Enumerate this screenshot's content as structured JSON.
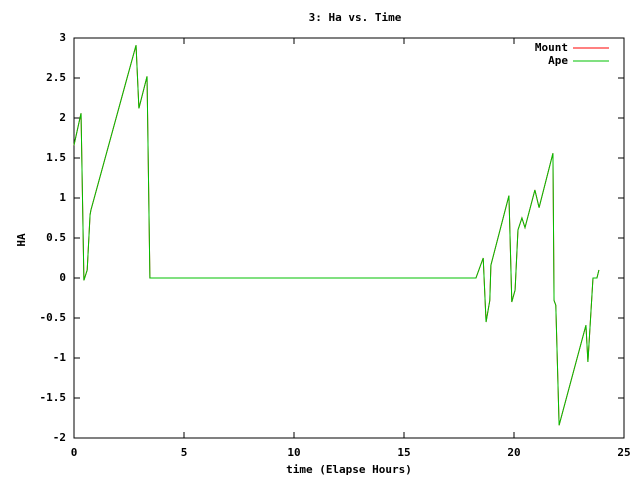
{
  "chart_data": {
    "type": "line",
    "title": "3: Ha vs. Time",
    "xlabel": "time (Elapse Hours)",
    "ylabel": "HA",
    "x": [
      0,
      0.32,
      0.45,
      0.6,
      0.73,
      0.77,
      2.82,
      2.95,
      3.32,
      3.45,
      18.27,
      18.6,
      18.73,
      18.9,
      18.95,
      19.77,
      19.9,
      20.05,
      20.18,
      20.36,
      20.5,
      20.95,
      21.14,
      21.77,
      21.82,
      21.9,
      22.05,
      23.27,
      23.36,
      23.59,
      23.77,
      23.86
    ],
    "series": [
      {
        "name": "Mount",
        "color": "#ff0000",
        "values": [
          1.66,
          2.06,
          -0.03,
          0.1,
          0.79,
          0.85,
          2.91,
          2.12,
          2.52,
          0,
          0,
          0.25,
          -0.55,
          -0.28,
          0.16,
          1.03,
          -0.3,
          -0.15,
          0.6,
          0.75,
          0.63,
          1.1,
          0.88,
          1.56,
          -0.28,
          -0.34,
          -1.84,
          -0.59,
          -1.05,
          0,
          0,
          0.1
        ]
      },
      {
        "name": "Ape",
        "color": "#00c000",
        "values": [
          1.66,
          2.06,
          -0.03,
          0.1,
          0.79,
          0.85,
          2.91,
          2.12,
          2.52,
          0,
          0,
          0.25,
          -0.55,
          -0.28,
          0.16,
          1.03,
          -0.3,
          -0.15,
          0.6,
          0.75,
          0.63,
          1.1,
          0.88,
          1.56,
          -0.28,
          -0.34,
          -1.84,
          -0.59,
          -1.05,
          0,
          0,
          0.1
        ]
      }
    ],
    "xlim": [
      0,
      25
    ],
    "xticks": [
      0,
      5,
      10,
      15,
      20,
      25
    ],
    "ylim": [
      -2,
      3
    ],
    "yticks": [
      -2,
      -1.5,
      -1,
      -0.5,
      0,
      0.5,
      1,
      1.5,
      2,
      2.5,
      3
    ],
    "legend": "top-right"
  }
}
